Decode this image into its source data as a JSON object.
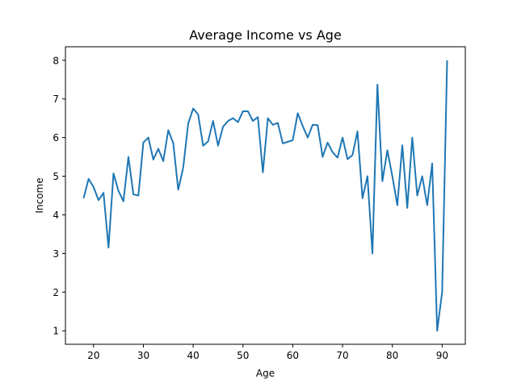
{
  "chart_data": {
    "type": "line",
    "title": "Average Income vs Age",
    "xlabel": "Age",
    "ylabel": "Income",
    "xlim": [
      14.35,
      94.65
    ],
    "ylim": [
      0.65,
      8.35
    ],
    "xticks": [
      20,
      30,
      40,
      50,
      60,
      70,
      80,
      90
    ],
    "yticks": [
      1,
      2,
      3,
      4,
      5,
      6,
      7,
      8
    ],
    "grid": false,
    "legend": "none",
    "series": [
      {
        "color": "#1f77b4",
        "x": [
          18,
          19,
          20,
          21,
          22,
          23,
          24,
          25,
          26,
          27,
          28,
          29,
          30,
          31,
          32,
          33,
          34,
          35,
          36,
          37,
          38,
          39,
          40,
          41,
          42,
          43,
          44,
          45,
          46,
          47,
          48,
          49,
          50,
          51,
          52,
          53,
          54,
          55,
          56,
          57,
          58,
          59,
          60,
          61,
          62,
          63,
          64,
          65,
          66,
          67,
          68,
          69,
          70,
          71,
          72,
          73,
          74,
          75,
          76,
          77,
          78,
          79,
          80,
          81,
          82,
          83,
          84,
          85,
          86,
          87,
          88,
          89,
          90,
          91
        ],
        "y": [
          4.43,
          4.93,
          4.72,
          4.38,
          4.57,
          3.15,
          5.07,
          4.62,
          4.35,
          5.5,
          4.53,
          4.5,
          5.87,
          6.0,
          5.43,
          5.71,
          5.39,
          6.19,
          5.86,
          4.65,
          5.22,
          6.36,
          6.75,
          6.6,
          5.79,
          5.9,
          6.43,
          5.79,
          6.28,
          6.43,
          6.5,
          6.4,
          6.68,
          6.68,
          6.43,
          6.53,
          5.1,
          6.5,
          6.33,
          6.38,
          5.85,
          5.89,
          5.93,
          6.63,
          6.3,
          6.0,
          6.33,
          6.32,
          5.5,
          5.87,
          5.62,
          5.48,
          6.0,
          5.44,
          5.55,
          6.16,
          4.43,
          5.0,
          3.0,
          7.37,
          4.87,
          5.67,
          5.0,
          4.25,
          5.8,
          4.18,
          6.0,
          4.5,
          5.0,
          4.25,
          5.33,
          1.0,
          2.0,
          8.0
        ]
      }
    ]
  }
}
